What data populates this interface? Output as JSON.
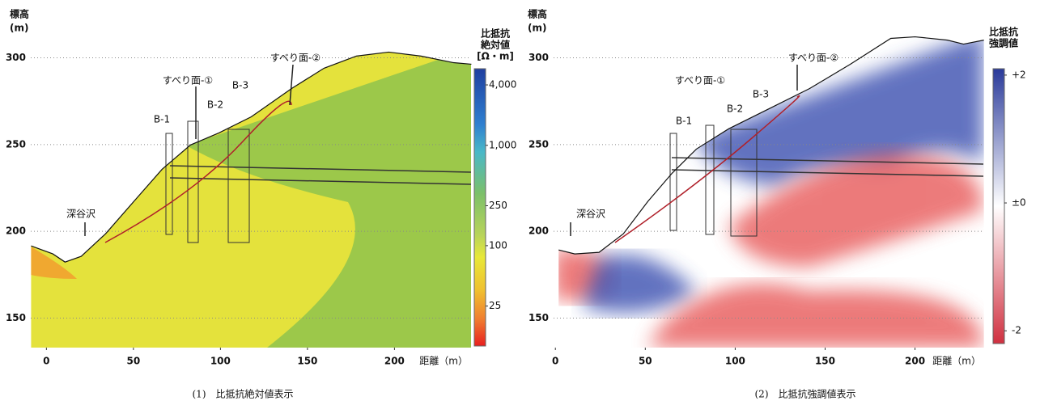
{
  "chart_data": [
    {
      "type": "cross-section",
      "caption": "(1)　比抵抗絶対値表示",
      "y_label": [
        "標高",
        "(m)"
      ],
      "x_label": "距離（m）",
      "xlim": [
        -9,
        244
      ],
      "ylim": [
        133,
        324
      ],
      "xticks": [
        0,
        50,
        100,
        150,
        200
      ],
      "yticks": [
        150,
        200,
        250,
        300
      ],
      "grid": true,
      "ground": {
        "x": [
          -8.8,
          3.7,
          10.7,
          20,
          34,
          50.2,
          66.5,
          82.8,
          99.1,
          117.7,
          140.9,
          159.5,
          178.1,
          196.7,
          215.3,
          234,
          244.2
        ],
        "y": [
          191.6,
          187,
          182.3,
          185.6,
          198.6,
          217.2,
          235.8,
          249.8,
          256.7,
          266,
          282.3,
          294,
          301,
          303.3,
          301,
          297.2,
          296.3
        ]
      },
      "annotations": [
        "すべり面-①",
        "すべり面-②",
        "B-1",
        "B-2",
        "B-3",
        "深谷沢"
      ],
      "colorbar": {
        "title": [
          "比抵抗",
          "絶対値",
          "[Ω・m]"
        ],
        "log": true,
        "clim": [
          10,
          5800
        ],
        "ticks": [
          {
            "value": 4000,
            "label": "4,000"
          },
          {
            "value": 1000,
            "label": "1,000"
          },
          250,
          100,
          25
        ]
      }
    },
    {
      "type": "cross-section",
      "caption": "(2)　比抵抗強調値表示",
      "y_label": [
        "標高",
        "(m)"
      ],
      "x_label": "距離（m）",
      "xlim": [
        -1,
        238
      ],
      "ylim": [
        133,
        324
      ],
      "xticks": [
        0,
        50,
        100,
        150,
        200
      ],
      "yticks": [
        150,
        200,
        250,
        300
      ],
      "grid": true,
      "ground": {
        "x": [
          1.8,
          10.8,
          24.3,
          37.8,
          51.4,
          64.9,
          78.4,
          96.4,
          118.9,
          141.4,
          164,
          186.5,
          200,
          218,
          227,
          238.3
        ],
        "y": [
          189.3,
          187,
          187.9,
          198.6,
          217.2,
          233.5,
          247.4,
          259.1,
          270.7,
          282.3,
          296.3,
          311.2,
          312.1,
          310.2,
          307.9,
          310.2
        ]
      },
      "annotations": [
        "すべり面-①",
        "すべり面-②",
        "B-1",
        "B-2",
        "B-3",
        "深谷沢"
      ],
      "colorbar": {
        "title": [
          "比抵抗",
          "強調値"
        ],
        "log": false,
        "clim": [
          -2.2,
          2.1
        ],
        "ticks": [
          {
            "value": 2,
            "label": "+2"
          },
          {
            "value": 0,
            "label": "±0"
          },
          {
            "value": -2,
            "label": "-2"
          }
        ]
      }
    }
  ]
}
